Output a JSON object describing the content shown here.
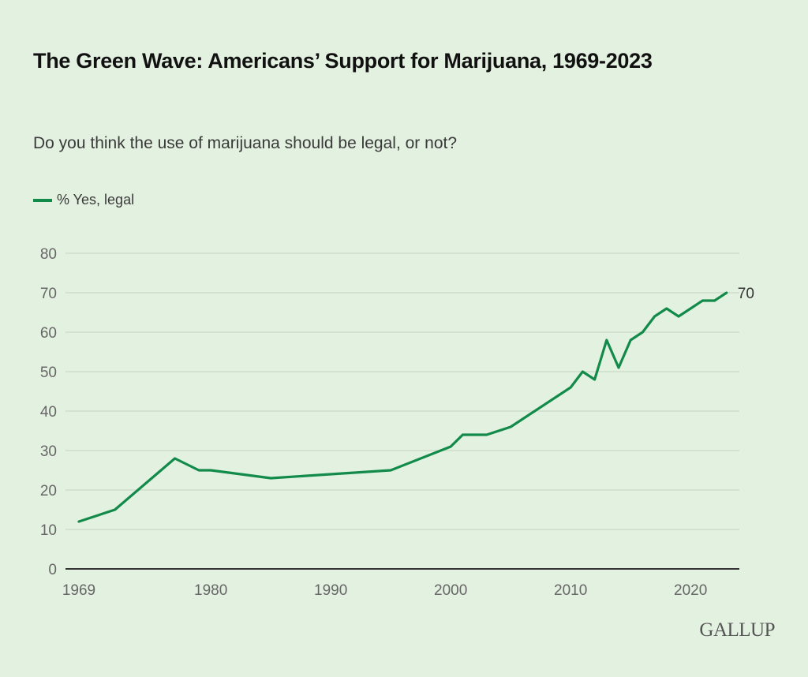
{
  "chart_data": {
    "type": "line",
    "title": "The Green Wave: Americans’ Support for Marijuana, 1969-2023",
    "subtitle": "Do you think the use of marijuana should be legal, or not?",
    "xlabel": "",
    "ylabel": "",
    "ylim": [
      0,
      80
    ],
    "xlim": [
      1969,
      2024
    ],
    "grid": true,
    "legend_position": "top-left",
    "y_ticks": [
      "0",
      "10",
      "20",
      "30",
      "40",
      "50",
      "60",
      "70",
      "80"
    ],
    "x_ticks": [
      "1969",
      "1980",
      "1990",
      "2000",
      "2010",
      "2020"
    ],
    "series": [
      {
        "name": "% Yes, legal",
        "color": "#128a4a",
        "x": [
          1969,
          1972,
          1977,
          1979,
          1980,
          1985,
          1995,
          2000,
          2001,
          2003,
          2005,
          2009,
          2010,
          2011,
          2012,
          2013,
          2014,
          2015,
          2016,
          2017,
          2018,
          2019,
          2020,
          2021,
          2022,
          2023
        ],
        "values": [
          12,
          15,
          28,
          25,
          25,
          23,
          25,
          31,
          34,
          34,
          36,
          44,
          46,
          50,
          48,
          58,
          51,
          58,
          60,
          64,
          66,
          64,
          66,
          68,
          68,
          70
        ]
      }
    ],
    "annotations": [
      {
        "x": 2023,
        "y": 70,
        "text": "70"
      }
    ]
  },
  "source": {
    "logo_text": "GALLUP"
  }
}
